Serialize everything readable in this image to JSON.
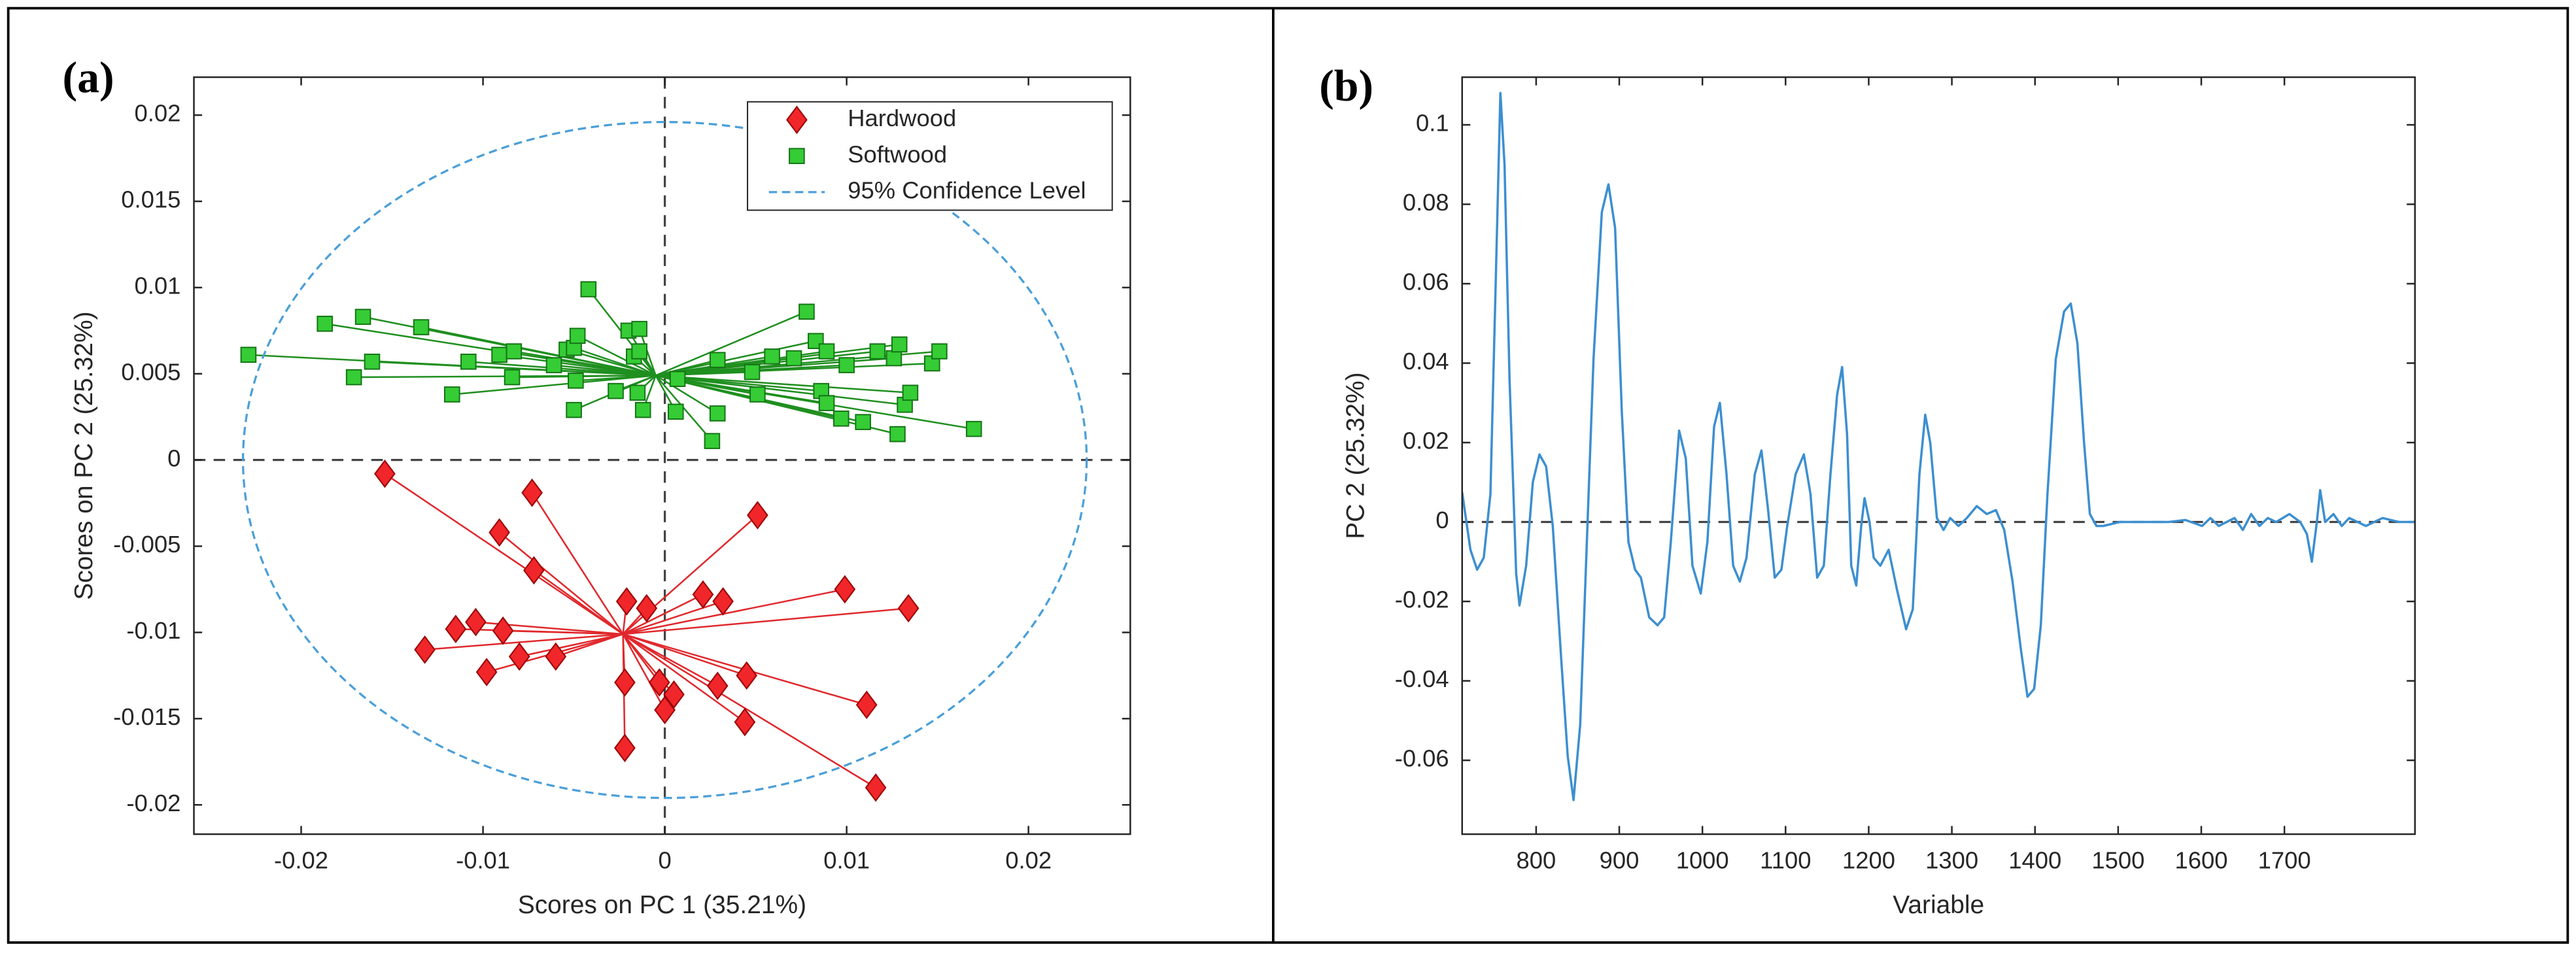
{
  "chart_data": [
    {
      "type": "scatter",
      "panel_label": "(a)",
      "xlabel": "Scores on PC 1 (35.21%)",
      "ylabel": "Scores on PC 2 (25.32%)",
      "xlim": [
        -0.0259,
        0.0256
      ],
      "ylim": [
        -0.0217,
        0.0222
      ],
      "xticks": [
        -0.02,
        -0.01,
        0,
        0.01,
        0.02
      ],
      "yticks": [
        -0.02,
        -0.015,
        -0.01,
        -0.005,
        0,
        0.005,
        0.01,
        0.015,
        0.02
      ],
      "hlines": [
        0
      ],
      "vlines": [
        0
      ],
      "legend": "upper right",
      "series": [
        {
          "name": "Hardwood",
          "marker": "diamond",
          "color": "#f0262a",
          "edge_color": "#9a0000",
          "line_color": "#e0282c",
          "centroid": [
            -0.0023,
            -0.0101
          ],
          "x": [
            -0.0154,
            -0.0073,
            -0.0091,
            -0.0072,
            0.0051,
            -0.0021,
            -0.001,
            0.0021,
            0.0032,
            0.0099,
            0.0134,
            -0.0115,
            -0.0104,
            -0.0089,
            -0.0132,
            -0.008,
            -0.006,
            -0.0098,
            -0.0022,
            -0.0003,
            0.0029,
            0.0045,
            0.0005,
            0.0,
            0.0044,
            0.0111,
            -0.0022,
            0.0116
          ],
          "y": [
            -0.0008,
            -0.0019,
            -0.0042,
            -0.0064,
            -0.0032,
            -0.0082,
            -0.0086,
            -0.0078,
            -0.0082,
            -0.0075,
            -0.0086,
            -0.0098,
            -0.0094,
            -0.0099,
            -0.011,
            -0.0114,
            -0.0114,
            -0.0123,
            -0.0129,
            -0.0129,
            -0.0131,
            -0.0125,
            -0.0136,
            -0.0145,
            -0.0152,
            -0.0142,
            -0.0167,
            -0.019
          ]
        },
        {
          "name": "Softwood",
          "marker": "square",
          "color": "#35cc35",
          "edge_color": "#157515",
          "line_color": "#1f8f1f",
          "centroid": [
            -0.0005,
            0.0049
          ],
          "x": [
            -0.0229,
            -0.0187,
            -0.0166,
            -0.0134,
            -0.0171,
            -0.0161,
            -0.0117,
            -0.0108,
            -0.0091,
            -0.0083,
            -0.0084,
            -0.0061,
            -0.0054,
            -0.005,
            -0.0048,
            -0.0042,
            -0.0049,
            -0.005,
            -0.0027,
            -0.002,
            -0.0014,
            -0.0017,
            -0.0014,
            -0.0015,
            -0.0012,
            0.0007,
            0.0006,
            0.0029,
            0.0029,
            0.0026,
            0.0048,
            0.0051,
            0.0059,
            0.0071,
            0.0083,
            0.0078,
            0.0089,
            0.0086,
            0.0089,
            0.0097,
            0.01,
            0.0109,
            0.0117,
            0.0126,
            0.0129,
            0.0128,
            0.0132,
            0.0135,
            0.0147,
            0.0151,
            0.017
          ],
          "y": [
            0.0061,
            0.0079,
            0.0083,
            0.0077,
            0.0048,
            0.0057,
            0.0038,
            0.0057,
            0.0061,
            0.0063,
            0.0048,
            0.0055,
            0.0064,
            0.0065,
            0.0072,
            0.0099,
            0.0046,
            0.0029,
            0.004,
            0.0075,
            0.0076,
            0.006,
            0.0063,
            0.0039,
            0.0029,
            0.0047,
            0.0028,
            0.0058,
            0.0027,
            0.0011,
            0.0051,
            0.0038,
            0.006,
            0.0059,
            0.0069,
            0.0086,
            0.0063,
            0.004,
            0.0033,
            0.0024,
            0.0055,
            0.0022,
            0.0063,
            0.0059,
            0.0067,
            0.0015,
            0.0032,
            0.0039,
            0.0056,
            0.0063,
            0.0018
          ]
        },
        {
          "name": "95% Confidence Level",
          "marker": "ellipse",
          "color": "#4a9fd8",
          "center": [
            0,
            0
          ],
          "radii": [
            0.0232,
            0.0196
          ]
        }
      ]
    },
    {
      "type": "line",
      "panel_label": "(b)",
      "xlabel": "Variable",
      "ylabel": "PC 2 (25.32%)",
      "xlim": [
        711,
        1857
      ],
      "ylim": [
        -0.0786,
        0.112
      ],
      "xticks": [
        800,
        900,
        1000,
        1100,
        1200,
        1300,
        1400,
        1500,
        1600,
        1700
      ],
      "yticks": [
        -0.06,
        -0.04,
        -0.02,
        0,
        0.02,
        0.04,
        0.06,
        0.08,
        0.1
      ],
      "hlines": [
        0
      ],
      "series": [
        {
          "color": "#3c8fd0",
          "x": [
            711,
            721,
            729,
            737,
            745,
            751,
            757,
            762,
            768,
            776,
            780,
            788,
            796,
            804,
            812,
            820,
            830,
            838,
            845,
            853,
            861,
            869,
            879,
            887,
            895,
            903,
            911,
            919,
            926,
            936,
            946,
            954,
            962,
            972,
            980,
            988,
            998,
            1006,
            1014,
            1021,
            1029,
            1037,
            1045,
            1053,
            1063,
            1071,
            1079,
            1087,
            1095,
            1102,
            1112,
            1122,
            1130,
            1138,
            1146,
            1154,
            1162,
            1168,
            1174,
            1179,
            1185,
            1191,
            1195,
            1201,
            1206,
            1214,
            1224,
            1234,
            1245,
            1253,
            1261,
            1268,
            1274,
            1282,
            1290,
            1298,
            1308,
            1318,
            1330,
            1342,
            1353,
            1363,
            1373,
            1383,
            1391,
            1399,
            1407,
            1415,
            1425,
            1435,
            1443,
            1451,
            1459,
            1466,
            1474,
            1482,
            1502,
            1521,
            1541,
            1561,
            1581,
            1601,
            1611,
            1621,
            1640,
            1650,
            1660,
            1670,
            1680,
            1690,
            1706,
            1719,
            1727,
            1733,
            1739,
            1743,
            1749,
            1759,
            1769,
            1778,
            1798,
            1818,
            1838,
            1857
          ],
          "values": [
            0.0075,
            -0.007,
            -0.012,
            -0.009,
            0.007,
            0.057,
            0.108,
            0.09,
            0.036,
            -0.013,
            -0.021,
            -0.011,
            0.01,
            0.017,
            0.014,
            -0.001,
            -0.034,
            -0.059,
            -0.07,
            -0.051,
            -0.005,
            0.041,
            0.078,
            0.085,
            0.074,
            0.028,
            -0.005,
            -0.012,
            -0.014,
            -0.024,
            -0.026,
            -0.024,
            -0.005,
            0.023,
            0.016,
            -0.011,
            -0.018,
            -0.005,
            0.024,
            0.03,
            0.012,
            -0.011,
            -0.015,
            -0.009,
            0.012,
            0.018,
            0.003,
            -0.014,
            -0.012,
            -0.001,
            0.012,
            0.017,
            0.007,
            -0.014,
            -0.011,
            0.012,
            0.032,
            0.039,
            0.022,
            -0.011,
            -0.016,
            -0.001,
            0.006,
            0.0,
            -0.009,
            -0.011,
            -0.007,
            -0.017,
            -0.027,
            -0.022,
            0.012,
            0.027,
            0.02,
            0.001,
            -0.002,
            0.001,
            -0.001,
            0.001,
            0.004,
            0.002,
            0.003,
            -0.002,
            -0.015,
            -0.032,
            -0.044,
            -0.042,
            -0.026,
            0.007,
            0.041,
            0.053,
            0.055,
            0.045,
            0.02,
            0.002,
            -0.001,
            -0.001,
            0.0,
            0.0,
            0.0,
            0.0,
            0.0005,
            -0.001,
            0.001,
            -0.001,
            0.001,
            -0.002,
            0.002,
            -0.001,
            0.001,
            0.0,
            0.002,
            0.0,
            -0.003,
            -0.01,
            0.0,
            0.008,
            0.0,
            0.002,
            -0.001,
            0.001,
            -0.001,
            0.001,
            0.0,
            0.0
          ]
        }
      ]
    }
  ]
}
